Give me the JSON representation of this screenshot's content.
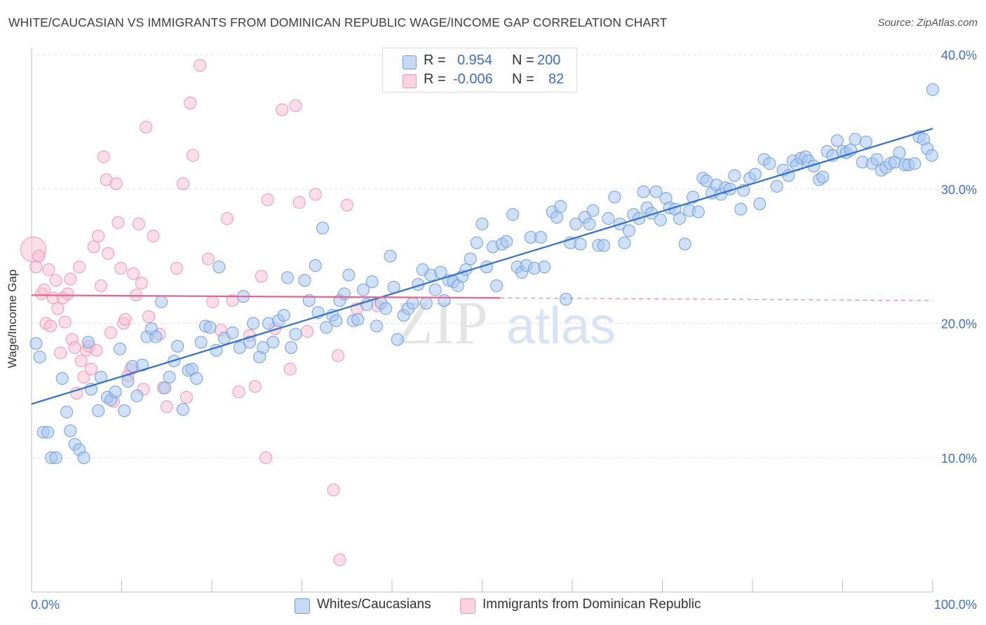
{
  "title": "WHITE/CAUCASIAN VS IMMIGRANTS FROM DOMINICAN REPUBLIC WAGE/INCOME GAP CORRELATION CHART",
  "source": "Source: ZipAtlas.com",
  "watermark": {
    "zip": "ZIP",
    "atlas": "atlas"
  },
  "stats": {
    "r_label": "R =",
    "n_label": "N =",
    "rows": [
      {
        "r": "0.954",
        "n": "200",
        "color": "#a9c6f0"
      },
      {
        "r": "-0.006",
        "n": "82",
        "color": "#f7b8cb"
      }
    ]
  },
  "legend": [
    {
      "label": "Whites/Caucasians",
      "color": "#a9c6f0"
    },
    {
      "label": "Immigrants from Dominican Republic",
      "color": "#f7b8cb"
    }
  ],
  "colors": {
    "blue_fill": "#a9c6f0",
    "blue_stroke": "#6f9ee0",
    "blue_line": "#2f6fd0",
    "pink_fill": "#f7c3d3",
    "pink_stroke": "#ee96b2",
    "pink_line": "#e8648d",
    "axis_label": "#3d6fc9",
    "grid": "#e2e2e2"
  },
  "chart_data": {
    "type": "scatter",
    "title": "WHITE/CAUCASIAN VS IMMIGRANTS FROM DOMINICAN REPUBLIC WAGE/INCOME GAP CORRELATION CHART",
    "xlabel": "",
    "ylabel": "Wage/Income Gap",
    "xlim": [
      0,
      100
    ],
    "ylim": [
      0,
      40
    ],
    "x_tick_labels": [
      "0.0%",
      "100.0%"
    ],
    "y_ticks": [
      10,
      20,
      30,
      40
    ],
    "y_tick_labels": [
      "10.0%",
      "20.0%",
      "30.0%",
      "40.0%"
    ],
    "grid": true,
    "legend_position": "bottom",
    "series": [
      {
        "name": "Whites/Caucasians",
        "color": "#a9c6f0",
        "trend": {
          "x": [
            0,
            100
          ],
          "y": [
            14.0,
            34.5
          ]
        },
        "points": [
          [
            0.5,
            18.5
          ],
          [
            0.9,
            17.5
          ],
          [
            1.3,
            11.9
          ],
          [
            1.8,
            11.9
          ],
          [
            2.2,
            10.0
          ],
          [
            2.7,
            10.0
          ],
          [
            3.4,
            15.9
          ],
          [
            3.9,
            13.4
          ],
          [
            4.3,
            12.0
          ],
          [
            4.8,
            11.0
          ],
          [
            5.3,
            10.6
          ],
          [
            5.8,
            10.0
          ],
          [
            6.3,
            18.6
          ],
          [
            6.6,
            15.1
          ],
          [
            7.4,
            13.5
          ],
          [
            7.7,
            16.0
          ],
          [
            8.4,
            14.5
          ],
          [
            8.8,
            14.3
          ],
          [
            9.3,
            14.9
          ],
          [
            9.8,
            18.1
          ],
          [
            10.3,
            13.5
          ],
          [
            10.7,
            15.7
          ],
          [
            11.2,
            16.8
          ],
          [
            11.7,
            14.6
          ],
          [
            12.3,
            16.9
          ],
          [
            12.8,
            19.0
          ],
          [
            13.3,
            19.6
          ],
          [
            13.8,
            19.0
          ],
          [
            14.4,
            21.6
          ],
          [
            14.8,
            15.2
          ],
          [
            15.3,
            16.0
          ],
          [
            15.8,
            17.2
          ],
          [
            16.2,
            18.3
          ],
          [
            16.8,
            13.6
          ],
          [
            17.4,
            16.5
          ],
          [
            17.8,
            16.6
          ],
          [
            18.3,
            15.9
          ],
          [
            18.8,
            18.6
          ],
          [
            19.3,
            19.8
          ],
          [
            19.8,
            19.7
          ],
          [
            20.5,
            18.0
          ],
          [
            20.8,
            24.2
          ],
          [
            21.4,
            18.9
          ],
          [
            22.3,
            19.3
          ],
          [
            23.1,
            18.2
          ],
          [
            23.5,
            22.0
          ],
          [
            24.2,
            18.6
          ],
          [
            24.6,
            20.0
          ],
          [
            25.3,
            17.5
          ],
          [
            25.7,
            18.2
          ],
          [
            26.3,
            20.0
          ],
          [
            26.8,
            18.6
          ],
          [
            27.4,
            20.2
          ],
          [
            28.0,
            20.6
          ],
          [
            28.4,
            23.4
          ],
          [
            28.8,
            18.2
          ],
          [
            29.3,
            19.2
          ],
          [
            30.3,
            23.2
          ],
          [
            30.8,
            21.7
          ],
          [
            31.5,
            24.3
          ],
          [
            31.8,
            20.8
          ],
          [
            32.3,
            27.1
          ],
          [
            32.7,
            19.7
          ],
          [
            33.4,
            20.6
          ],
          [
            33.8,
            20.2
          ],
          [
            34.2,
            21.7
          ],
          [
            34.7,
            22.2
          ],
          [
            35.2,
            23.6
          ],
          [
            35.7,
            20.2
          ],
          [
            36.2,
            20.3
          ],
          [
            36.8,
            22.5
          ],
          [
            37.2,
            21.4
          ],
          [
            37.8,
            23.1
          ],
          [
            38.3,
            19.8
          ],
          [
            38.8,
            21.5
          ],
          [
            39.3,
            21.1
          ],
          [
            39.8,
            25.0
          ],
          [
            40.2,
            22.7
          ],
          [
            40.6,
            18.8
          ],
          [
            41.3,
            20.6
          ],
          [
            41.8,
            21.1
          ],
          [
            42.3,
            21.5
          ],
          [
            42.9,
            22.9
          ],
          [
            43.4,
            24.0
          ],
          [
            43.8,
            21.5
          ],
          [
            44.3,
            23.6
          ],
          [
            44.8,
            22.5
          ],
          [
            45.4,
            23.8
          ],
          [
            45.8,
            21.7
          ],
          [
            46.3,
            23.2
          ],
          [
            46.8,
            23.1
          ],
          [
            47.3,
            22.8
          ],
          [
            47.8,
            23.5
          ],
          [
            48.2,
            24.0
          ],
          [
            48.7,
            24.8
          ],
          [
            49.4,
            26.0
          ],
          [
            50.0,
            27.4
          ],
          [
            50.5,
            24.2
          ],
          [
            51.2,
            25.7
          ],
          [
            51.6,
            22.8
          ],
          [
            52.2,
            25.9
          ],
          [
            52.7,
            26.1
          ],
          [
            53.4,
            28.1
          ],
          [
            53.9,
            24.2
          ],
          [
            54.4,
            23.8
          ],
          [
            54.9,
            24.3
          ],
          [
            55.4,
            26.4
          ],
          [
            55.8,
            24.1
          ],
          [
            56.5,
            26.4
          ],
          [
            56.9,
            24.2
          ],
          [
            57.8,
            28.3
          ],
          [
            58.3,
            27.9
          ],
          [
            58.7,
            28.7
          ],
          [
            59.3,
            21.8
          ],
          [
            59.8,
            26.0
          ],
          [
            60.4,
            27.4
          ],
          [
            60.9,
            25.9
          ],
          [
            61.4,
            27.9
          ],
          [
            61.9,
            27.4
          ],
          [
            62.3,
            28.4
          ],
          [
            62.9,
            25.8
          ],
          [
            63.5,
            25.8
          ],
          [
            64.0,
            27.8
          ],
          [
            64.7,
            29.4
          ],
          [
            65.3,
            27.4
          ],
          [
            65.8,
            26.0
          ],
          [
            66.3,
            26.9
          ],
          [
            66.8,
            28.1
          ],
          [
            67.4,
            27.8
          ],
          [
            67.9,
            29.8
          ],
          [
            68.3,
            28.6
          ],
          [
            68.8,
            28.2
          ],
          [
            69.3,
            29.8
          ],
          [
            69.8,
            27.7
          ],
          [
            70.4,
            29.3
          ],
          [
            70.8,
            28.6
          ],
          [
            71.4,
            28.5
          ],
          [
            71.9,
            27.8
          ],
          [
            72.5,
            25.9
          ],
          [
            73.0,
            28.4
          ],
          [
            73.4,
            29.4
          ],
          [
            74.0,
            28.3
          ],
          [
            74.5,
            30.8
          ],
          [
            74.9,
            30.6
          ],
          [
            75.5,
            29.7
          ],
          [
            76.0,
            30.3
          ],
          [
            76.5,
            29.6
          ],
          [
            77.0,
            30.1
          ],
          [
            77.5,
            30.0
          ],
          [
            78.0,
            31.0
          ],
          [
            78.7,
            28.5
          ],
          [
            79.0,
            29.9
          ],
          [
            79.7,
            30.8
          ],
          [
            80.3,
            31.1
          ],
          [
            80.8,
            28.9
          ],
          [
            81.3,
            32.2
          ],
          [
            81.9,
            31.9
          ],
          [
            82.7,
            30.2
          ],
          [
            83.4,
            31.4
          ],
          [
            84.0,
            31.0
          ],
          [
            84.5,
            32.1
          ],
          [
            84.9,
            31.8
          ],
          [
            85.4,
            32.3
          ],
          [
            85.9,
            32.4
          ],
          [
            86.2,
            32.1
          ],
          [
            86.8,
            31.7
          ],
          [
            87.4,
            30.7
          ],
          [
            87.8,
            30.9
          ],
          [
            88.3,
            32.8
          ],
          [
            88.9,
            32.5
          ],
          [
            89.4,
            33.6
          ],
          [
            90.0,
            32.8
          ],
          [
            90.4,
            32.7
          ],
          [
            90.9,
            32.9
          ],
          [
            91.4,
            33.7
          ],
          [
            92.2,
            32.0
          ],
          [
            92.6,
            33.5
          ],
          [
            93.3,
            31.9
          ],
          [
            93.8,
            32.2
          ],
          [
            94.3,
            31.4
          ],
          [
            94.8,
            31.6
          ],
          [
            95.3,
            31.9
          ],
          [
            95.8,
            32.0
          ],
          [
            96.3,
            32.7
          ],
          [
            96.9,
            31.8
          ],
          [
            97.3,
            31.8
          ],
          [
            98.0,
            31.9
          ],
          [
            98.5,
            33.9
          ],
          [
            99.0,
            33.7
          ],
          [
            99.4,
            33.0
          ],
          [
            99.9,
            32.5
          ],
          [
            100.0,
            37.4
          ]
        ]
      },
      {
        "name": "Immigrants from Dominican Republic",
        "color": "#f7b8cb",
        "trend": {
          "x": [
            0,
            100
          ],
          "y": [
            22.1,
            21.7
          ]
        },
        "points": [
          [
            0.2,
            25.5
          ],
          [
            0.5,
            24.2
          ],
          [
            0.8,
            25.0
          ],
          [
            1.1,
            22.2
          ],
          [
            1.4,
            22.5
          ],
          [
            1.6,
            20.0
          ],
          [
            1.9,
            24.0
          ],
          [
            2.1,
            19.8
          ],
          [
            2.4,
            21.9
          ],
          [
            2.7,
            23.2
          ],
          [
            2.9,
            21.1
          ],
          [
            3.2,
            17.8
          ],
          [
            3.5,
            21.9
          ],
          [
            3.7,
            20.1
          ],
          [
            4.0,
            22.2
          ],
          [
            4.3,
            23.3
          ],
          [
            4.5,
            18.8
          ],
          [
            4.8,
            18.2
          ],
          [
            5.0,
            14.8
          ],
          [
            5.3,
            24.2
          ],
          [
            5.5,
            17.2
          ],
          [
            5.8,
            16.0
          ],
          [
            6.1,
            18.0
          ],
          [
            6.4,
            18.3
          ],
          [
            6.6,
            16.6
          ],
          [
            6.9,
            25.7
          ],
          [
            7.2,
            18.0
          ],
          [
            7.4,
            26.5
          ],
          [
            7.7,
            22.8
          ],
          [
            8.0,
            32.4
          ],
          [
            8.3,
            30.7
          ],
          [
            8.5,
            25.2
          ],
          [
            8.8,
            19.3
          ],
          [
            9.1,
            14.2
          ],
          [
            9.4,
            30.4
          ],
          [
            9.6,
            27.5
          ],
          [
            9.9,
            24.1
          ],
          [
            10.2,
            20.0
          ],
          [
            10.4,
            20.3
          ],
          [
            10.7,
            16.1
          ],
          [
            11.0,
            16.6
          ],
          [
            11.3,
            23.7
          ],
          [
            11.6,
            22.1
          ],
          [
            11.9,
            27.4
          ],
          [
            12.2,
            23.0
          ],
          [
            12.4,
            15.1
          ],
          [
            12.7,
            34.6
          ],
          [
            13.0,
            20.5
          ],
          [
            13.5,
            26.5
          ],
          [
            14.2,
            19.2
          ],
          [
            14.6,
            15.2
          ],
          [
            15.0,
            13.8
          ],
          [
            16.1,
            24.1
          ],
          [
            16.8,
            30.4
          ],
          [
            17.2,
            14.5
          ],
          [
            17.6,
            36.4
          ],
          [
            17.9,
            32.5
          ],
          [
            18.7,
            39.2
          ],
          [
            19.6,
            24.8
          ],
          [
            20.1,
            21.6
          ],
          [
            21.0,
            19.5
          ],
          [
            21.7,
            27.8
          ],
          [
            22.3,
            21.7
          ],
          [
            23.0,
            14.9
          ],
          [
            24.2,
            19.1
          ],
          [
            24.8,
            15.3
          ],
          [
            25.5,
            23.5
          ],
          [
            26.2,
            29.2
          ],
          [
            26.0,
            10.0
          ],
          [
            27.0,
            19.6
          ],
          [
            27.8,
            35.9
          ],
          [
            28.7,
            16.6
          ],
          [
            29.3,
            36.2
          ],
          [
            29.7,
            29.0
          ],
          [
            30.6,
            19.4
          ],
          [
            31.5,
            29.6
          ],
          [
            33.5,
            7.6
          ],
          [
            34.0,
            17.6
          ],
          [
            34.2,
            2.4
          ],
          [
            35.0,
            28.8
          ],
          [
            36.1,
            21.1
          ],
          [
            38.4,
            21.3
          ]
        ]
      }
    ]
  }
}
